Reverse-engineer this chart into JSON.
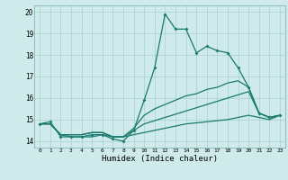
{
  "xlabel": "Humidex (Indice chaleur)",
  "x_values": [
    0,
    1,
    2,
    3,
    4,
    5,
    6,
    7,
    8,
    9,
    10,
    11,
    12,
    13,
    14,
    15,
    16,
    17,
    18,
    19,
    20,
    21,
    22,
    23
  ],
  "line1": [
    14.8,
    14.9,
    14.2,
    14.2,
    14.2,
    14.3,
    14.3,
    14.1,
    14.0,
    14.5,
    15.9,
    17.4,
    19.9,
    19.2,
    19.2,
    18.1,
    18.4,
    18.2,
    18.1,
    17.4,
    16.5,
    15.3,
    15.1,
    15.2
  ],
  "line2": [
    14.8,
    14.8,
    14.3,
    14.3,
    14.3,
    14.4,
    14.4,
    14.2,
    14.2,
    14.6,
    15.2,
    15.5,
    15.7,
    15.9,
    16.1,
    16.2,
    16.4,
    16.5,
    16.7,
    16.8,
    16.5,
    15.3,
    15.1,
    15.2
  ],
  "line3": [
    14.8,
    14.8,
    14.3,
    14.3,
    14.3,
    14.4,
    14.4,
    14.2,
    14.2,
    14.5,
    14.8,
    14.95,
    15.1,
    15.25,
    15.4,
    15.55,
    15.7,
    15.85,
    16.0,
    16.15,
    16.3,
    15.3,
    15.1,
    15.2
  ],
  "line4": [
    14.8,
    14.8,
    14.3,
    14.2,
    14.2,
    14.2,
    14.3,
    14.2,
    14.2,
    14.3,
    14.4,
    14.5,
    14.6,
    14.7,
    14.8,
    14.85,
    14.9,
    14.95,
    15.0,
    15.1,
    15.2,
    15.1,
    15.0,
    15.2
  ],
  "ylim": [
    13.7,
    20.3
  ],
  "xlim": [
    -0.5,
    23.5
  ],
  "yticks": [
    14,
    15,
    16,
    17,
    18,
    19,
    20
  ],
  "xticks": [
    0,
    1,
    2,
    3,
    4,
    5,
    6,
    7,
    8,
    9,
    10,
    11,
    12,
    13,
    14,
    15,
    16,
    17,
    18,
    19,
    20,
    21,
    22,
    23
  ],
  "line_color": "#1a7a6e",
  "bg_color": "#ceeaea",
  "grid_color": "#aacfcf",
  "marker_size": 2.0,
  "linewidth": 0.9
}
